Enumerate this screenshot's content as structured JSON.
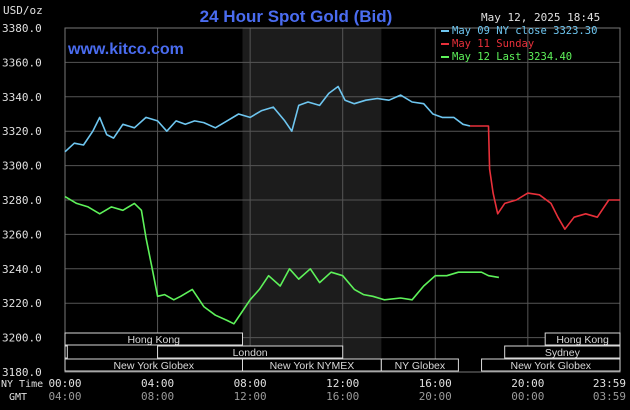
{
  "header": {
    "title": "24 Hour Spot Gold (Bid)",
    "units": "USD/oz",
    "datestamp": "May 12, 2025 18:45",
    "watermark": "www.kitco.com"
  },
  "colors": {
    "title": "#4a6cf0",
    "watermark": "#4a6cf0",
    "may09": "#6ec6f0",
    "may11": "#e8303a",
    "may12": "#5ef25a",
    "grid": "#555555",
    "text": "#e0e0e0",
    "band_fill": "#1c1c1c",
    "session_fill": "#d9d9d9",
    "session_text": "#111111"
  },
  "chart_data": {
    "type": "line",
    "ylim": [
      3180,
      3380
    ],
    "y_ticks": [
      "3380.0",
      "3360.0",
      "3340.0",
      "3320.0",
      "3300.0",
      "3280.0",
      "3260.0",
      "3240.0",
      "3220.0",
      "3200.0",
      "3180.0"
    ],
    "x_range_hours": [
      0,
      23.983
    ],
    "ny_time_label": "NY Time",
    "gmt_label": "GMT",
    "ny_ticks": [
      "00:00",
      "04:00",
      "08:00",
      "12:00",
      "16:00",
      "20:00",
      "23:59"
    ],
    "gmt_ticks": [
      "04:00",
      "08:00",
      "12:00",
      "16:00",
      "20:00",
      "00:00",
      "03:59"
    ],
    "shaded_band": [
      7.67,
      13.67
    ],
    "legend": [
      {
        "name": "May 09 NY close 3323.30",
        "color": "#6ec6f0"
      },
      {
        "name": "May 11 Sunday",
        "color": "#e8303a"
      },
      {
        "name": "May 12 Last 3234.40",
        "color": "#5ef25a"
      }
    ],
    "series": [
      {
        "name": "May 09 NY close 3323.30",
        "color": "#6ec6f0",
        "points": [
          [
            0,
            3308
          ],
          [
            0.4,
            3313
          ],
          [
            0.8,
            3312
          ],
          [
            1.2,
            3320
          ],
          [
            1.5,
            3328
          ],
          [
            1.8,
            3318
          ],
          [
            2.1,
            3316
          ],
          [
            2.5,
            3324
          ],
          [
            3.0,
            3322
          ],
          [
            3.5,
            3328
          ],
          [
            4.0,
            3326
          ],
          [
            4.4,
            3320
          ],
          [
            4.8,
            3326
          ],
          [
            5.2,
            3324
          ],
          [
            5.6,
            3326
          ],
          [
            6.0,
            3325
          ],
          [
            6.5,
            3322
          ],
          [
            7.0,
            3326
          ],
          [
            7.5,
            3330
          ],
          [
            8.0,
            3328
          ],
          [
            8.5,
            3332
          ],
          [
            9.0,
            3334
          ],
          [
            9.5,
            3326
          ],
          [
            9.8,
            3320
          ],
          [
            10.1,
            3335
          ],
          [
            10.5,
            3337
          ],
          [
            11.0,
            3335
          ],
          [
            11.4,
            3342
          ],
          [
            11.8,
            3346
          ],
          [
            12.1,
            3338
          ],
          [
            12.5,
            3336
          ],
          [
            13.0,
            3338
          ],
          [
            13.5,
            3339
          ],
          [
            14.0,
            3338
          ],
          [
            14.5,
            3341
          ],
          [
            15.0,
            3337
          ],
          [
            15.5,
            3336
          ],
          [
            15.9,
            3330
          ],
          [
            16.3,
            3328
          ],
          [
            16.8,
            3328
          ],
          [
            17.2,
            3324
          ],
          [
            17.5,
            3323
          ]
        ]
      },
      {
        "name": "May 11 Sunday",
        "color": "#e8303a",
        "points": [
          [
            17.5,
            3323
          ],
          [
            18.3,
            3323
          ],
          [
            18.35,
            3298
          ],
          [
            18.5,
            3284
          ],
          [
            18.7,
            3272
          ],
          [
            19.0,
            3278
          ],
          [
            19.5,
            3280
          ],
          [
            20.0,
            3284
          ],
          [
            20.5,
            3283
          ],
          [
            21.0,
            3278
          ],
          [
            21.3,
            3270
          ],
          [
            21.6,
            3263
          ],
          [
            22.0,
            3270
          ],
          [
            22.5,
            3272
          ],
          [
            23.0,
            3270
          ],
          [
            23.5,
            3280
          ],
          [
            23.983,
            3280
          ]
        ]
      },
      {
        "name": "May 12 Last 3234.40",
        "color": "#5ef25a",
        "points": [
          [
            0,
            3282
          ],
          [
            0.5,
            3278
          ],
          [
            1.0,
            3276
          ],
          [
            1.5,
            3272
          ],
          [
            2.0,
            3276
          ],
          [
            2.5,
            3274
          ],
          [
            3.0,
            3278
          ],
          [
            3.3,
            3274
          ],
          [
            3.5,
            3258
          ],
          [
            3.8,
            3238
          ],
          [
            4.0,
            3224
          ],
          [
            4.3,
            3225
          ],
          [
            4.7,
            3222
          ],
          [
            5.0,
            3224
          ],
          [
            5.5,
            3228
          ],
          [
            6.0,
            3218
          ],
          [
            6.5,
            3213
          ],
          [
            7.0,
            3210
          ],
          [
            7.3,
            3208
          ],
          [
            7.6,
            3214
          ],
          [
            8.0,
            3222
          ],
          [
            8.4,
            3228
          ],
          [
            8.8,
            3236
          ],
          [
            9.3,
            3230
          ],
          [
            9.7,
            3240
          ],
          [
            10.1,
            3234
          ],
          [
            10.6,
            3240
          ],
          [
            11.0,
            3232
          ],
          [
            11.5,
            3238
          ],
          [
            12.0,
            3236
          ],
          [
            12.5,
            3228
          ],
          [
            12.9,
            3225
          ],
          [
            13.3,
            3224
          ],
          [
            13.8,
            3222
          ],
          [
            14.5,
            3223
          ],
          [
            15.0,
            3222
          ],
          [
            15.5,
            3230
          ],
          [
            16.0,
            3236
          ],
          [
            16.5,
            3236
          ],
          [
            17.0,
            3238
          ],
          [
            17.5,
            3238
          ],
          [
            18.0,
            3238
          ],
          [
            18.3,
            3236
          ],
          [
            18.75,
            3235
          ]
        ]
      }
    ]
  },
  "sessions": [
    {
      "label": "Hong Kong",
      "row": 0,
      "start": 0,
      "end": 7.67
    },
    {
      "label": "Hong Kong",
      "row": 0,
      "start": 20.75,
      "end": 23.983
    },
    {
      "label": "London",
      "row": 1,
      "start": 0,
      "end": 0.1
    },
    {
      "label": "London",
      "row": 1,
      "start": 4.0,
      "end": 12.0
    },
    {
      "label": "Sydney",
      "row": 1,
      "start": 19.0,
      "end": 23.983
    },
    {
      "label": "New York Globex",
      "row": 2,
      "start": 0,
      "end": 7.67
    },
    {
      "label": "New York NYMEX",
      "row": 2,
      "start": 7.67,
      "end": 13.67
    },
    {
      "label": "NY Globex",
      "row": 2,
      "start": 13.67,
      "end": 17.0
    },
    {
      "label": "New York Globex",
      "row": 2,
      "start": 18.0,
      "end": 23.983
    }
  ]
}
